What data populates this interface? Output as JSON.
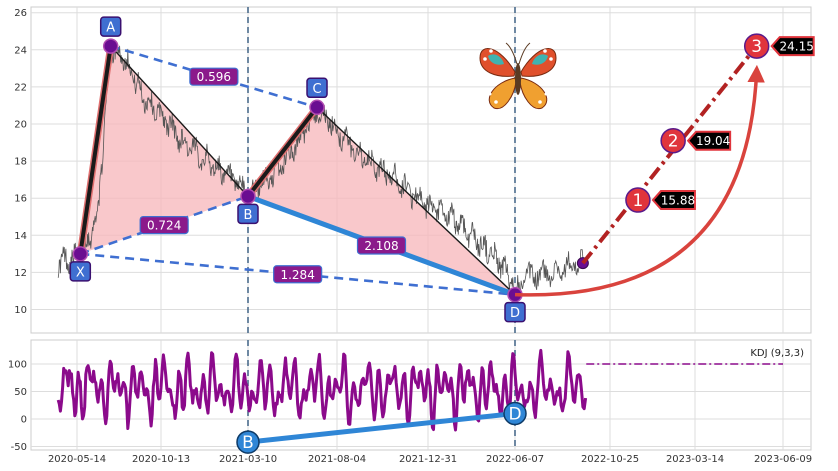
{
  "chart_data": [
    {
      "type": "line",
      "title": "",
      "xlabel": "",
      "ylabel": "",
      "ylim": [
        8.6,
        26.4
      ],
      "yticks": [
        10,
        12,
        14,
        16,
        18,
        20,
        22,
        24,
        26
      ],
      "x_tick_labels": [
        "2020-05-14",
        "2020-10-13",
        "2021-03-10",
        "2021-08-04",
        "2021-12-31",
        "2022-06-07",
        "2022-10-25",
        "2023-03-14",
        "2023-06-09"
      ],
      "grid": true,
      "price_series_knots": [
        {
          "x": "2020-04-10",
          "y": 12.6
        },
        {
          "x": "2020-05-20",
          "y": 12.8
        },
        {
          "x": "2020-06-20",
          "y": 15.0
        },
        {
          "x": "2020-07-14",
          "y": 24.2
        },
        {
          "x": "2020-08-10",
          "y": 23.5
        },
        {
          "x": "2020-09-10",
          "y": 21.5
        },
        {
          "x": "2020-10-13",
          "y": 20.5
        },
        {
          "x": "2020-11-20",
          "y": 19.0
        },
        {
          "x": "2021-01-01",
          "y": 18.0
        },
        {
          "x": "2021-02-10",
          "y": 17.0
        },
        {
          "x": "2021-03-10",
          "y": 16.2
        },
        {
          "x": "2021-04-20",
          "y": 17.2
        },
        {
          "x": "2021-06-01",
          "y": 19.0
        },
        {
          "x": "2021-07-02",
          "y": 20.8
        },
        {
          "x": "2021-08-04",
          "y": 19.6
        },
        {
          "x": "2021-09-20",
          "y": 18.0
        },
        {
          "x": "2021-11-10",
          "y": 17.0
        },
        {
          "x": "2021-12-31",
          "y": 15.5
        },
        {
          "x": "2022-02-20",
          "y": 14.8
        },
        {
          "x": "2022-04-10",
          "y": 13.4
        },
        {
          "x": "2022-05-10",
          "y": 12.6
        },
        {
          "x": "2022-06-07",
          "y": 11.1
        },
        {
          "x": "2022-07-01",
          "y": 11.8
        },
        {
          "x": "2022-08-01",
          "y": 12.0
        },
        {
          "x": "2022-09-01",
          "y": 12.4
        },
        {
          "x": "2022-09-15",
          "y": 12.5
        }
      ],
      "points": [
        {
          "label": "X",
          "x": "2020-05-20",
          "y": 13.0,
          "label_pos": "below"
        },
        {
          "label": "A",
          "x": "2020-07-14",
          "y": 24.2,
          "label_pos": "above"
        },
        {
          "label": "B",
          "x": "2021-03-10",
          "y": 16.1,
          "label_pos": "below"
        },
        {
          "label": "C",
          "x": "2021-07-02",
          "y": 20.9,
          "label_pos": "above"
        },
        {
          "label": "D",
          "x": "2022-06-07",
          "y": 10.8,
          "label_pos": "below"
        }
      ],
      "ratio_lines": [
        {
          "from": "A",
          "to": "C",
          "label": "0.596",
          "style": "dashed"
        },
        {
          "from": "X",
          "to": "B",
          "label": "0.724",
          "style": "dashed"
        },
        {
          "from": "X",
          "to": "D",
          "label": "1.284",
          "style": "dashed"
        },
        {
          "from": "B",
          "to": "D",
          "label": "2.108",
          "style": "solid"
        }
      ],
      "targets": [
        {
          "num": "1",
          "value": "15.88",
          "x": "2022-12-10",
          "y": 15.9
        },
        {
          "num": "2",
          "value": "19.04",
          "x": "2023-02-06",
          "y": 19.1
        },
        {
          "num": "3",
          "value": "24.15",
          "x": "2023-05-14",
          "y": 24.2
        }
      ],
      "projection_start": {
        "x": "2022-09-15",
        "y": 12.5
      },
      "vlines": [
        "2021-03-10",
        "2022-06-07"
      ],
      "colors": {
        "price": "#555555",
        "fill": "#f7b6ba",
        "edge": "#1a1a1a",
        "ratio_blue": "#3f6fd1",
        "ratio_box": "#8b1a8b",
        "bd_line": "#2f86d6",
        "target": "#e0343c",
        "target_line": "#b22222",
        "label_box": "#3f6fd1",
        "kdj": "#8b0a8b",
        "dot": "#6a0d91"
      }
    },
    {
      "type": "line",
      "title": "",
      "ylabel": "",
      "legend": "KDJ (9,3,3)",
      "ylim": [
        -55,
        140
      ],
      "yticks": [
        -50,
        0,
        50,
        100
      ],
      "grid": true,
      "points": [
        {
          "label": "B",
          "x": "2021-03-10",
          "y": -42
        },
        {
          "label": "D",
          "x": "2022-06-07",
          "y": 10
        }
      ],
      "projection_level": 100,
      "projection_range": [
        "2022-09-20",
        "2023-06-09"
      ]
    }
  ]
}
